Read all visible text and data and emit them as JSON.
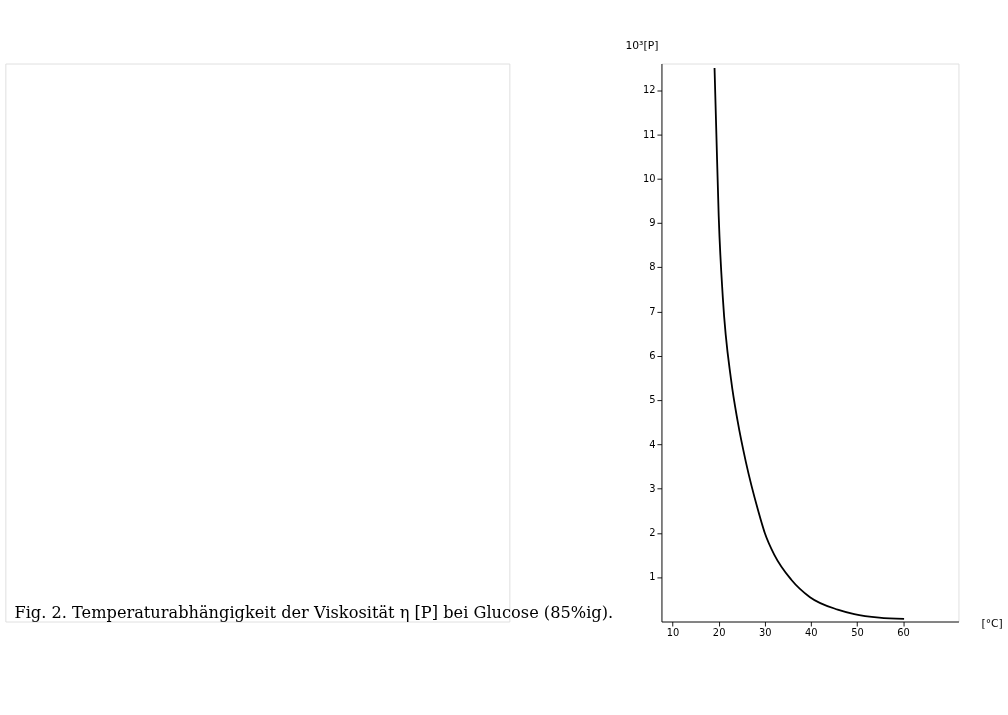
{
  "chart_data": {
    "type": "line",
    "annotations": [
      "Fig. 2. Temperaturabhängigkeit der Viskosität η [P] bei Glucose (85%ig)."
    ],
    "xlabel": "[°C]",
    "ylabel": "10³[P]",
    "x": [
      19.1,
      19.5,
      20.0,
      20.9,
      22.7,
      24.1,
      25.9,
      28.6,
      30.0,
      32.1,
      35.7,
      39.8,
      45.8,
      49.4,
      54.8,
      60.2
    ],
    "values": [
      12.5,
      11.0,
      9.17,
      7.31,
      5.45,
      4.53,
      3.6,
      2.49,
      2.0,
      1.5,
      0.95,
      0.55,
      0.27,
      0.17,
      0.09,
      0.06
    ],
    "color": "#000000",
    "xlim": [
      7.6,
      72
    ],
    "xticks": [
      10,
      20,
      30,
      40,
      50,
      60
    ],
    "ylim": [
      0,
      12.6
    ],
    "yticks": [
      1,
      2,
      3,
      4,
      5,
      6,
      7,
      8,
      9,
      10,
      11,
      12
    ],
    "grid": false,
    "marker": "none",
    "line_style": "solid"
  }
}
